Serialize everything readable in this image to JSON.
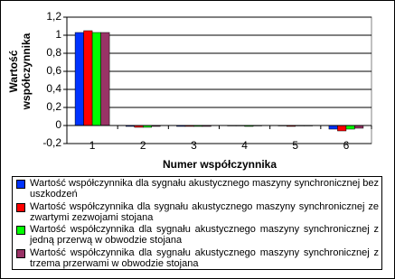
{
  "chart_data": {
    "type": "bar",
    "y_label": "Wartość współczynnika",
    "x_label": "Numer współczynnika",
    "categories": [
      "1",
      "2",
      "3",
      "4",
      "5",
      "6"
    ],
    "series": [
      {
        "name": "Wartość współczynnika dla sygnału akustycznego maszyny synchronicznej bez uszkodzeń",
        "color": "#0033ff",
        "values": [
          1.03,
          -0.01,
          -0.01,
          -0.005,
          -0.005,
          -0.04
        ]
      },
      {
        "name": "Wartość współczynnika dla sygnału akustycznego maszyny synchronicznej ze zwartymi zezwojami stojana",
        "color": "#ff0000",
        "values": [
          1.05,
          -0.02,
          -0.01,
          -0.005,
          -0.01,
          -0.06
        ]
      },
      {
        "name": "Wartość współczynnika dla sygnału akustycznego maszyny synchronicznej z jedną przerwą w obwodzie stojana",
        "color": "#00ff00",
        "values": [
          1.03,
          -0.02,
          -0.01,
          -0.01,
          -0.005,
          -0.04
        ]
      },
      {
        "name": "Wartość współczynnika dla sygnału akustycznego maszyny synchronicznej z trzema przerwami w obwodzie stojana",
        "color": "#993366",
        "values": [
          1.03,
          -0.01,
          -0.01,
          -0.005,
          -0.005,
          -0.03
        ]
      }
    ],
    "ylim": [
      -0.2,
      1.2
    ],
    "yticks": [
      {
        "value": -0.2,
        "label": "-0,2"
      },
      0,
      {
        "value": 0.2,
        "label": "0,2"
      },
      {
        "value": 0.4,
        "label": "0,4"
      },
      {
        "value": 0.6,
        "label": "0,6"
      },
      {
        "value": 0.8,
        "label": "0,8"
      },
      1,
      {
        "value": 1.2,
        "label": "1,2"
      }
    ],
    "grid": true
  }
}
